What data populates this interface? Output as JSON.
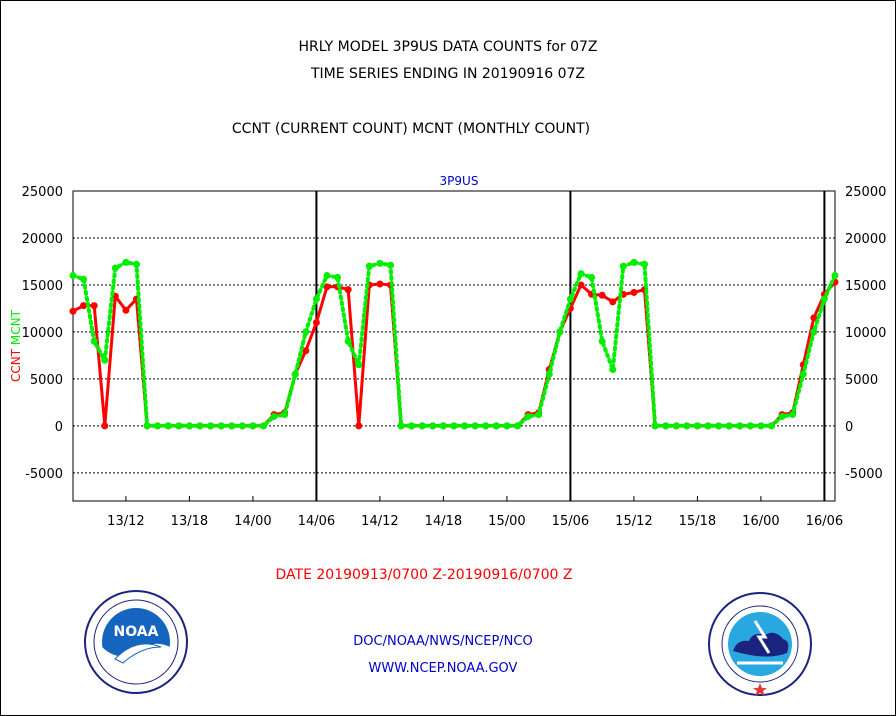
{
  "header": {
    "title_line1": "HRLY MODEL 3P9US DATA COUNTS for 07Z",
    "title_line2": "TIME SERIES ENDING IN 20190916 07Z",
    "legend_note": "CCNT (CURRENT COUNT) MCNT (MONTHLY COUNT)"
  },
  "footer": {
    "date_range": "DATE 20190913/0700 Z-20190916/0700 Z",
    "org_path": "DOC/NOAA/NWS/NCEP/NCO",
    "website": "WWW.NCEP.NOAA.GOV"
  },
  "logos": {
    "noaa": {
      "label": "NOAA",
      "ring_text": "NATIONAL OCEANIC AND ATMOSPHERIC ADMINISTRATION - U.S. DEPARTMENT OF COMMERCE"
    },
    "nws": {
      "ring_text": "NATIONAL WEATHER SERVICE"
    }
  },
  "chart_data": {
    "type": "line",
    "title": "3P9US",
    "ylabel_left": [
      "CCNT",
      "MCNT"
    ],
    "ylim": [
      -8000,
      25000
    ],
    "yticks": [
      25000,
      20000,
      15000,
      10000,
      5000,
      0,
      -5000
    ],
    "xlim": [
      "2019-09-13 07:00",
      "2019-09-16 07:00"
    ],
    "xticks": [
      "13/12",
      "13/18",
      "14/00",
      "14/06",
      "14/12",
      "14/18",
      "15/00",
      "15/06",
      "15/12",
      "15/18",
      "16/00",
      "16/06"
    ],
    "grid": "horizontal",
    "day_markers": [
      "14/06",
      "15/06",
      "16/06"
    ],
    "colors": {
      "CCNT": "#ff0000",
      "MCNT": "#00ee00",
      "title": "#0000cc"
    },
    "x": [
      "13/07",
      "13/08",
      "13/09",
      "13/10",
      "13/11",
      "13/12",
      "13/13",
      "13/14",
      "13/15",
      "13/16",
      "13/17",
      "13/18",
      "13/19",
      "13/20",
      "13/21",
      "13/22",
      "13/23",
      "14/00",
      "14/01",
      "14/02",
      "14/03",
      "14/04",
      "14/05",
      "14/06",
      "14/07",
      "14/08",
      "14/09",
      "14/10",
      "14/11",
      "14/12",
      "14/13",
      "14/14",
      "14/15",
      "14/16",
      "14/17",
      "14/18",
      "14/19",
      "14/20",
      "14/21",
      "14/22",
      "14/23",
      "15/00",
      "15/01",
      "15/02",
      "15/03",
      "15/04",
      "15/05",
      "15/06",
      "15/07",
      "15/08",
      "15/09",
      "15/10",
      "15/11",
      "15/12",
      "15/13",
      "15/14",
      "15/15",
      "15/16",
      "15/17",
      "15/18",
      "15/19",
      "15/20",
      "15/21",
      "15/22",
      "15/23",
      "16/00",
      "16/01",
      "16/02",
      "16/03",
      "16/04",
      "16/05",
      "16/06",
      "16/07"
    ],
    "series": [
      {
        "name": "CCNT",
        "values": [
          12200,
          12800,
          12800,
          0,
          13800,
          12300,
          13500,
          0,
          0,
          0,
          0,
          0,
          0,
          0,
          0,
          0,
          0,
          0,
          0,
          1200,
          1400,
          5500,
          8000,
          11000,
          14800,
          14800,
          14500,
          0,
          15000,
          15100,
          15000,
          0,
          0,
          0,
          0,
          0,
          0,
          0,
          0,
          0,
          0,
          0,
          0,
          1200,
          1400,
          6000,
          10000,
          12500,
          15000,
          14000,
          13900,
          13200,
          14000,
          14200,
          14500,
          0,
          0,
          0,
          0,
          0,
          0,
          0,
          0,
          0,
          0,
          0,
          0,
          1200,
          1400,
          6500,
          11500,
          14000,
          15300
        ]
      },
      {
        "name": "MCNT",
        "values": [
          16000,
          15600,
          9000,
          7000,
          16800,
          17400,
          17200,
          0,
          0,
          0,
          0,
          0,
          0,
          0,
          0,
          0,
          0,
          0,
          0,
          1000,
          1200,
          5500,
          10000,
          13500,
          16000,
          15800,
          9000,
          6500,
          17000,
          17300,
          17100,
          0,
          0,
          0,
          0,
          0,
          0,
          0,
          0,
          0,
          0,
          0,
          0,
          1000,
          1200,
          5500,
          10000,
          13500,
          16200,
          15800,
          9000,
          6000,
          17000,
          17400,
          17200,
          0,
          0,
          0,
          0,
          0,
          0,
          0,
          0,
          0,
          0,
          0,
          0,
          1000,
          1200,
          5500,
          10000,
          13500,
          16000
        ]
      }
    ]
  }
}
